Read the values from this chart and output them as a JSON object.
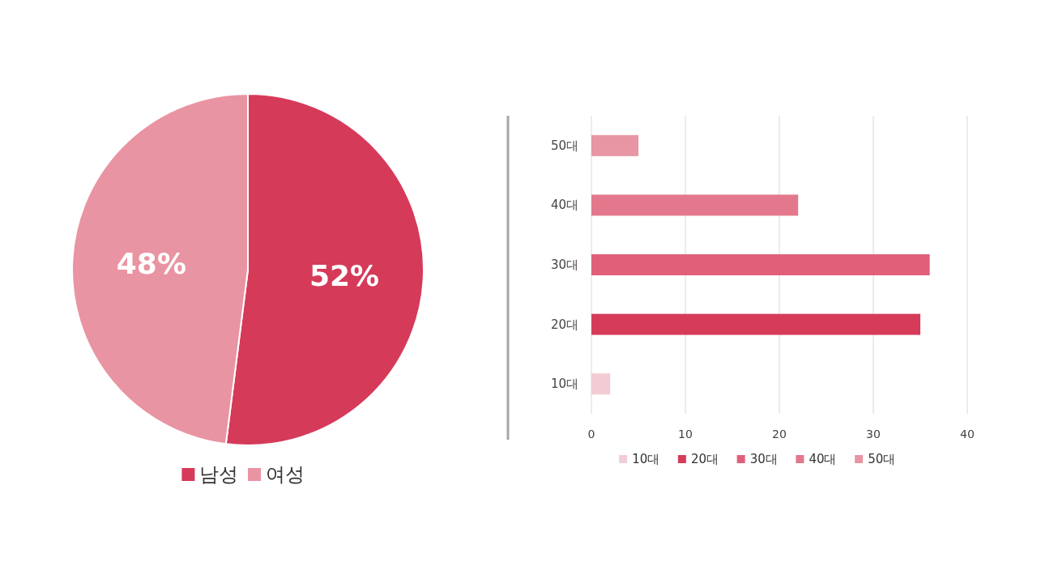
{
  "chart_data": [
    {
      "type": "pie",
      "categories": [
        "남성",
        "여성"
      ],
      "values": [
        52,
        48
      ],
      "value_labels": [
        "52%",
        "48%"
      ],
      "colors": [
        "#d63a59",
        "#e994a2"
      ],
      "legend": "bottom"
    },
    {
      "type": "bar",
      "orientation": "horizontal",
      "stacked": true,
      "categories": [
        "50대",
        "40대",
        "30대",
        "20대",
        "10대"
      ],
      "series": [
        {
          "name": "10대",
          "color": "#f2ccd4",
          "values": [
            null,
            null,
            null,
            null,
            2
          ]
        },
        {
          "name": "20대",
          "color": "#d63c5a",
          "values": [
            null,
            null,
            null,
            35,
            null
          ]
        },
        {
          "name": "30대",
          "color": "#e0607a",
          "values": [
            null,
            null,
            36,
            null,
            null
          ]
        },
        {
          "name": "40대",
          "color": "#e3788c",
          "values": [
            null,
            22,
            null,
            null,
            null
          ]
        },
        {
          "name": "50대",
          "color": "#e895a4",
          "values": [
            5,
            null,
            null,
            null,
            null
          ]
        }
      ],
      "xlim": [
        0,
        40
      ],
      "xticks": [
        0,
        10,
        20,
        30,
        40
      ],
      "grid": "x",
      "legend": "bottom"
    }
  ]
}
